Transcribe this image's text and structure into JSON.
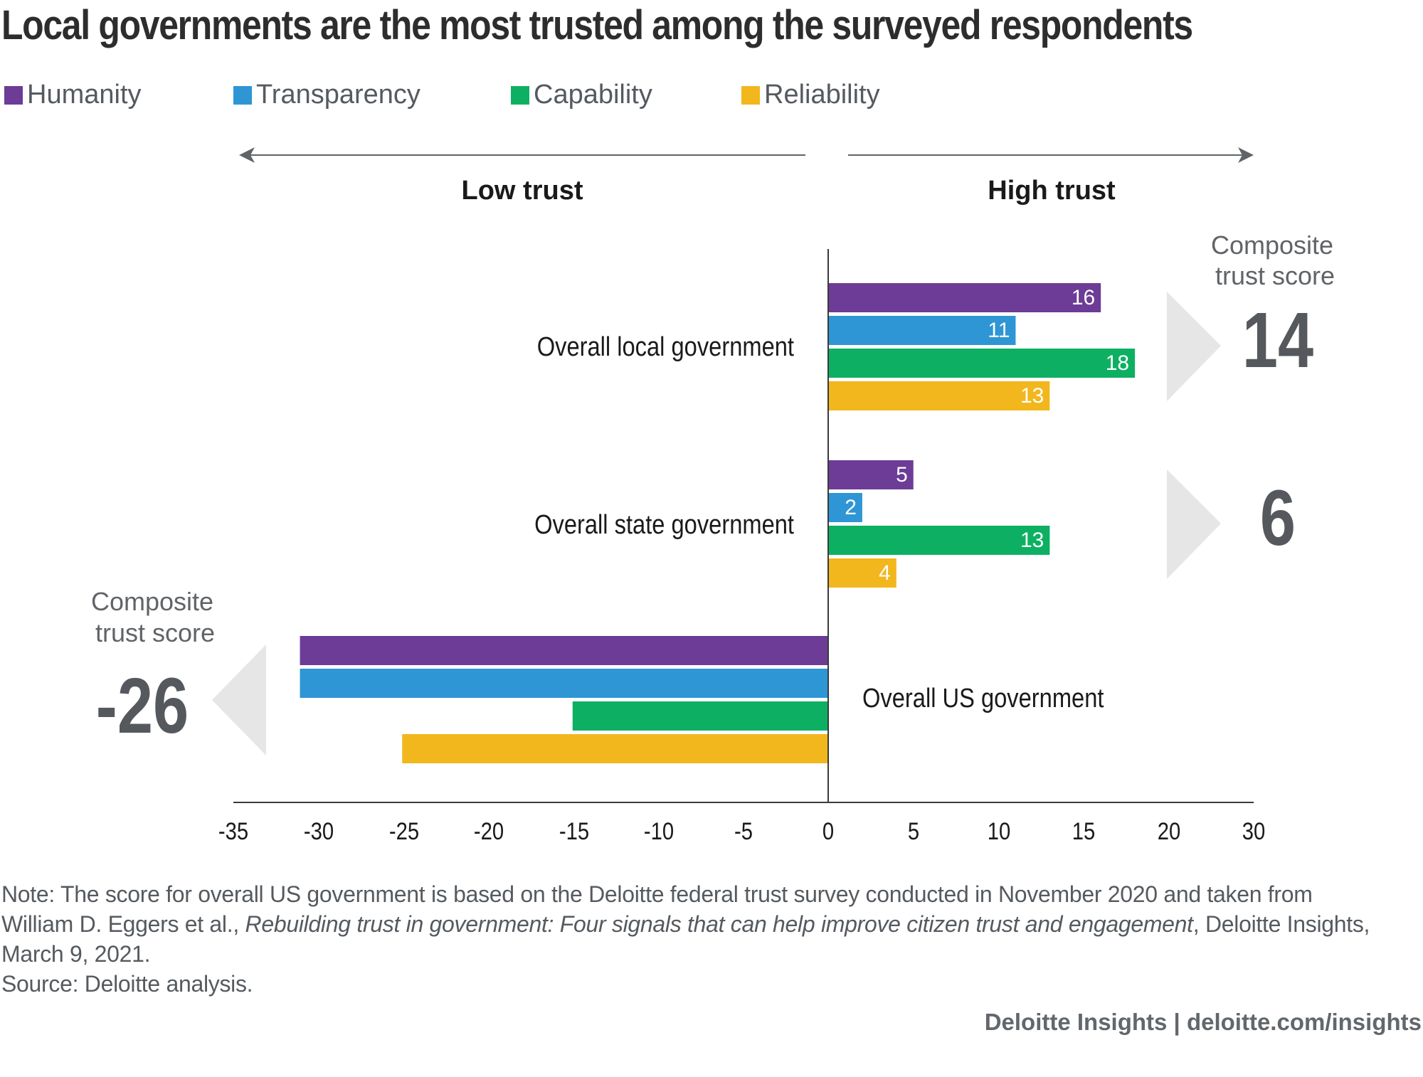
{
  "title": "Local governments are the most trusted among the surveyed respondents",
  "direction": {
    "low": "Low trust",
    "high": "High trust"
  },
  "composite": {
    "label_line1": "Composite",
    "label_line2": "trust score"
  },
  "chart_data": {
    "type": "bar",
    "orientation": "horizontal",
    "title": "Local governments are the most trusted among the surveyed respondents",
    "xlim": [
      -35,
      30
    ],
    "xticks": [
      "-35",
      "-30",
      "-25",
      "-20",
      "-15",
      "-10",
      "-5",
      "0",
      "5",
      "10",
      "15",
      "20",
      "30"
    ],
    "categories": [
      "Overall local government",
      "Overall state government",
      "Overall US government"
    ],
    "series": [
      {
        "name": "Humanity",
        "color": "#6c3c96",
        "values": [
          16,
          5,
          -31
        ]
      },
      {
        "name": "Transparency",
        "color": "#2e96d4",
        "values": [
          11,
          2,
          -31
        ]
      },
      {
        "name": "Capability",
        "color": "#0db062",
        "values": [
          18,
          13,
          -15
        ]
      },
      {
        "name": "Reliability",
        "color": "#f2b71d",
        "values": [
          13,
          4,
          -25
        ]
      }
    ],
    "value_labels_shown": [
      [
        "16",
        "11",
        "18",
        "13"
      ],
      [
        "5",
        "2",
        "13",
        "4"
      ],
      [
        "",
        "",
        "",
        ""
      ]
    ],
    "composite_scores": [
      "14",
      "6",
      "-26"
    ]
  },
  "note": {
    "line1": "Note: The score for overall US government is based on the Deloitte federal trust survey conducted in November 2020 and taken from",
    "line2_pre": "William D. Eggers et al., ",
    "line2_italic": "Rebuilding trust in government: Four signals that can help improve citizen trust and engagement",
    "line2_post": ", Deloitte Insights,",
    "line3": "March 9, 2021.",
    "source": "Source: Deloitte analysis."
  },
  "footer": "Deloitte Insights | deloitte.com/insights"
}
